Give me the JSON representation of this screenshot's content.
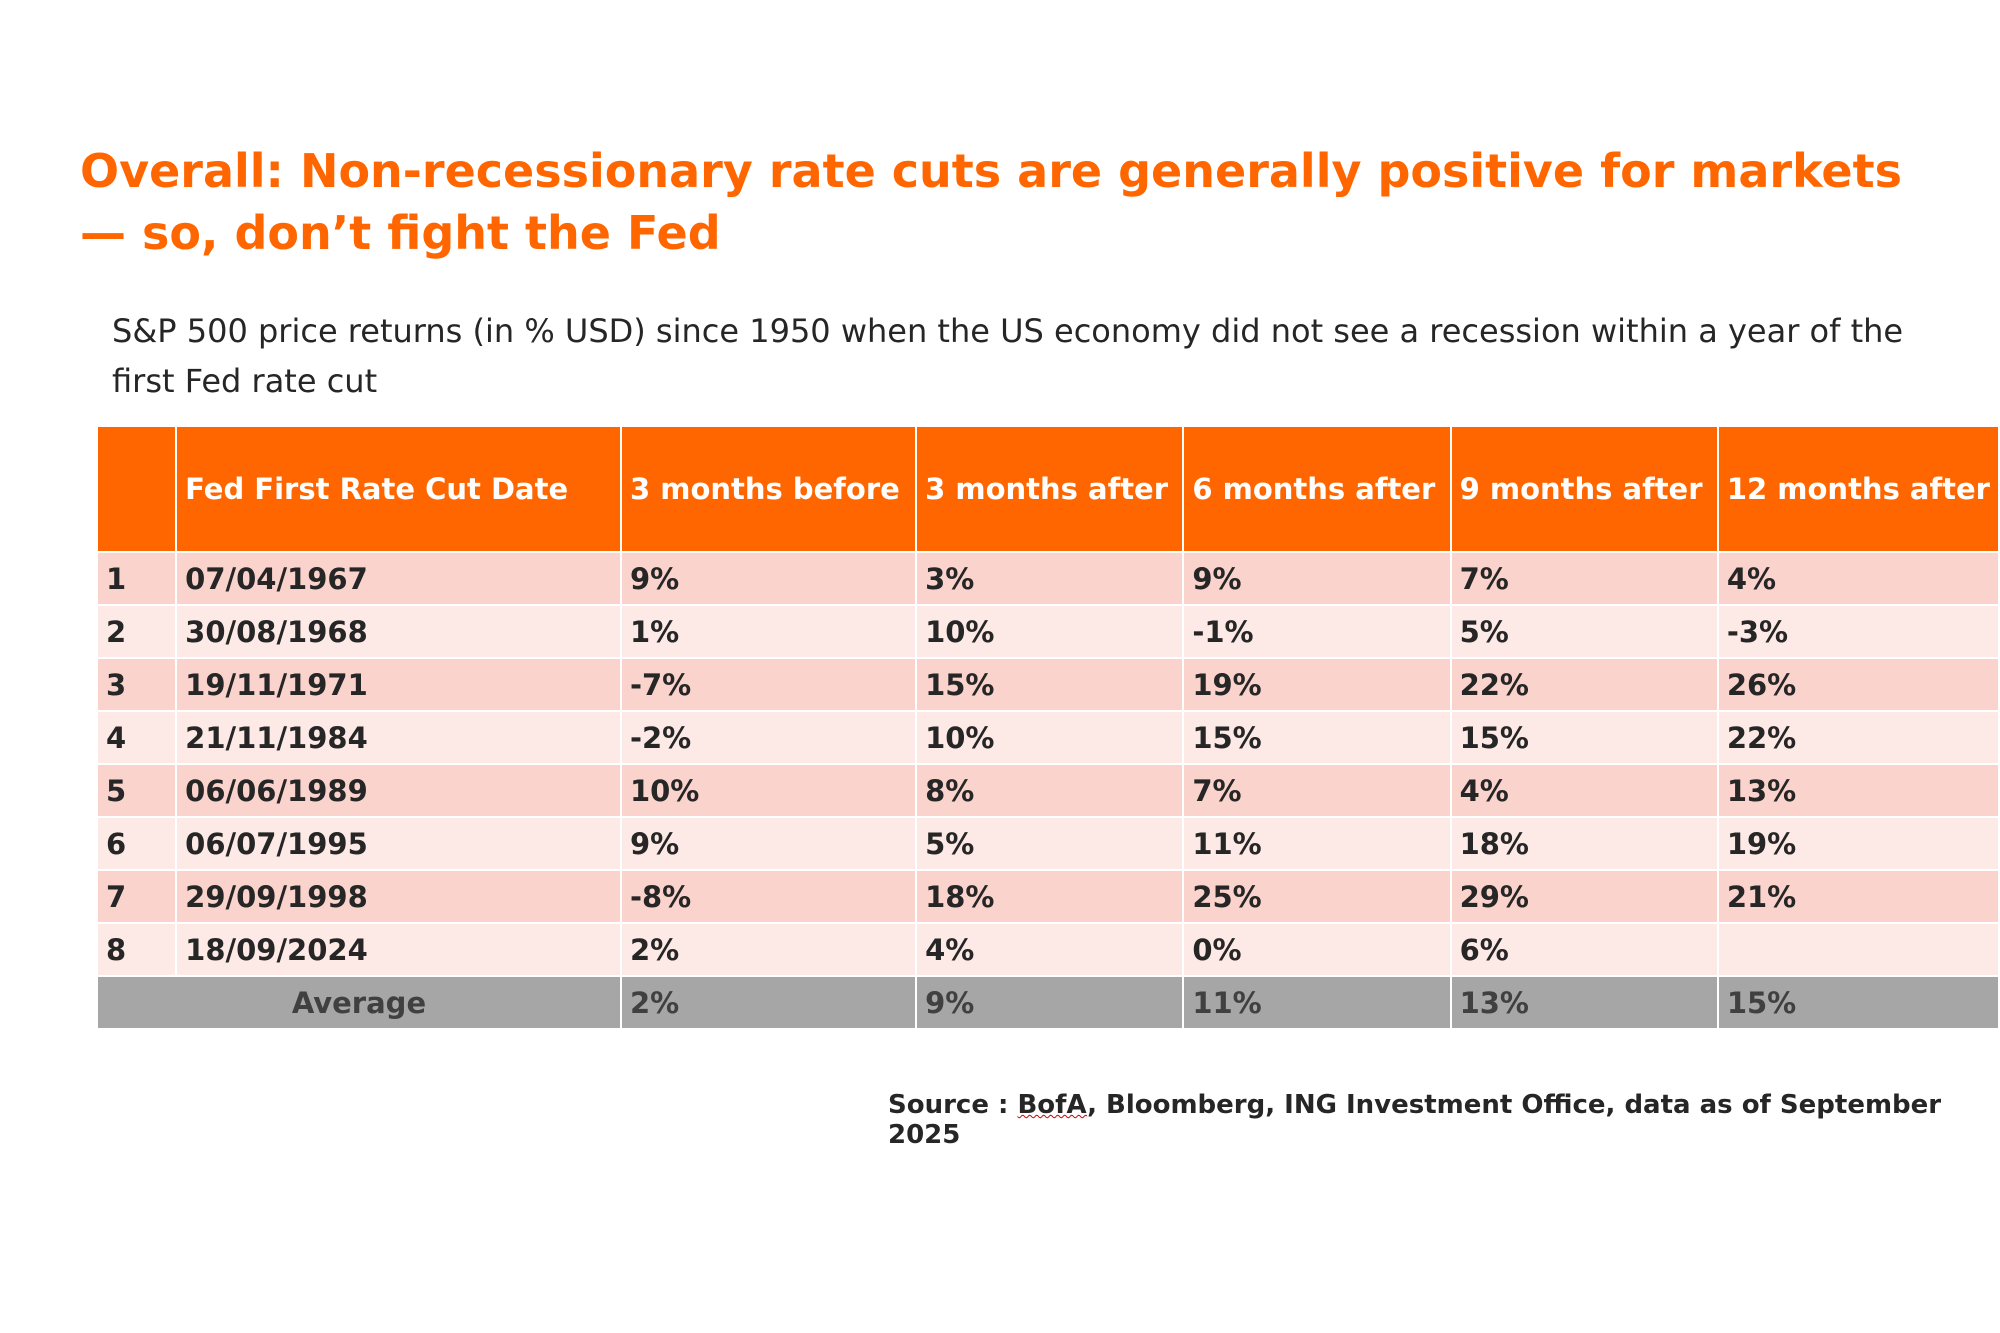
{
  "title": "Overall: Non-recessionary rate cuts are generally positive for markets — so, don’t fight the Fed",
  "subtitle": "S&P 500 price returns (in % USD)  since 1950 when the US economy did not see a recession within a year of the first Fed rate cut",
  "source": {
    "prefix": "Source : ",
    "highlighted": "BofA",
    "rest": ", Bloomberg, ING Investment Office, data as of September 2025"
  },
  "colors": {
    "header": "#ff6600",
    "row_dark": "#fbd3cd",
    "row_light": "#fde9e6",
    "average_row": "#a6a6a6",
    "title": "#ff6600"
  },
  "chart_data": {
    "type": "table",
    "columns": [
      "",
      "Fed First Rate Cut Date",
      "3 months before",
      "3 months after",
      "6 months after",
      "9 months after",
      "12 months after"
    ],
    "rows": [
      [
        "1",
        "07/04/1967",
        "9%",
        "3%",
        "9%",
        "7%",
        "4%"
      ],
      [
        "2",
        "30/08/1968",
        "1%",
        "10%",
        "-1%",
        "5%",
        "-3%"
      ],
      [
        "3",
        "19/11/1971",
        "-7%",
        "15%",
        "19%",
        "22%",
        "26%"
      ],
      [
        "4",
        "21/11/1984",
        "-2%",
        "10%",
        "15%",
        "15%",
        "22%"
      ],
      [
        "5",
        "06/06/1989",
        "10%",
        "8%",
        "7%",
        "4%",
        "13%"
      ],
      [
        "6",
        "06/07/1995",
        "9%",
        "5%",
        "11%",
        "18%",
        "19%"
      ],
      [
        "7",
        "29/09/1998",
        "-8%",
        "18%",
        "25%",
        "29%",
        "21%"
      ],
      [
        "8",
        "18/09/2024",
        "2%",
        "4%",
        "0%",
        "6%",
        ""
      ]
    ],
    "average": {
      "label": "Average",
      "values": [
        "2%",
        "9%",
        "11%",
        "13%",
        "15%"
      ]
    }
  }
}
